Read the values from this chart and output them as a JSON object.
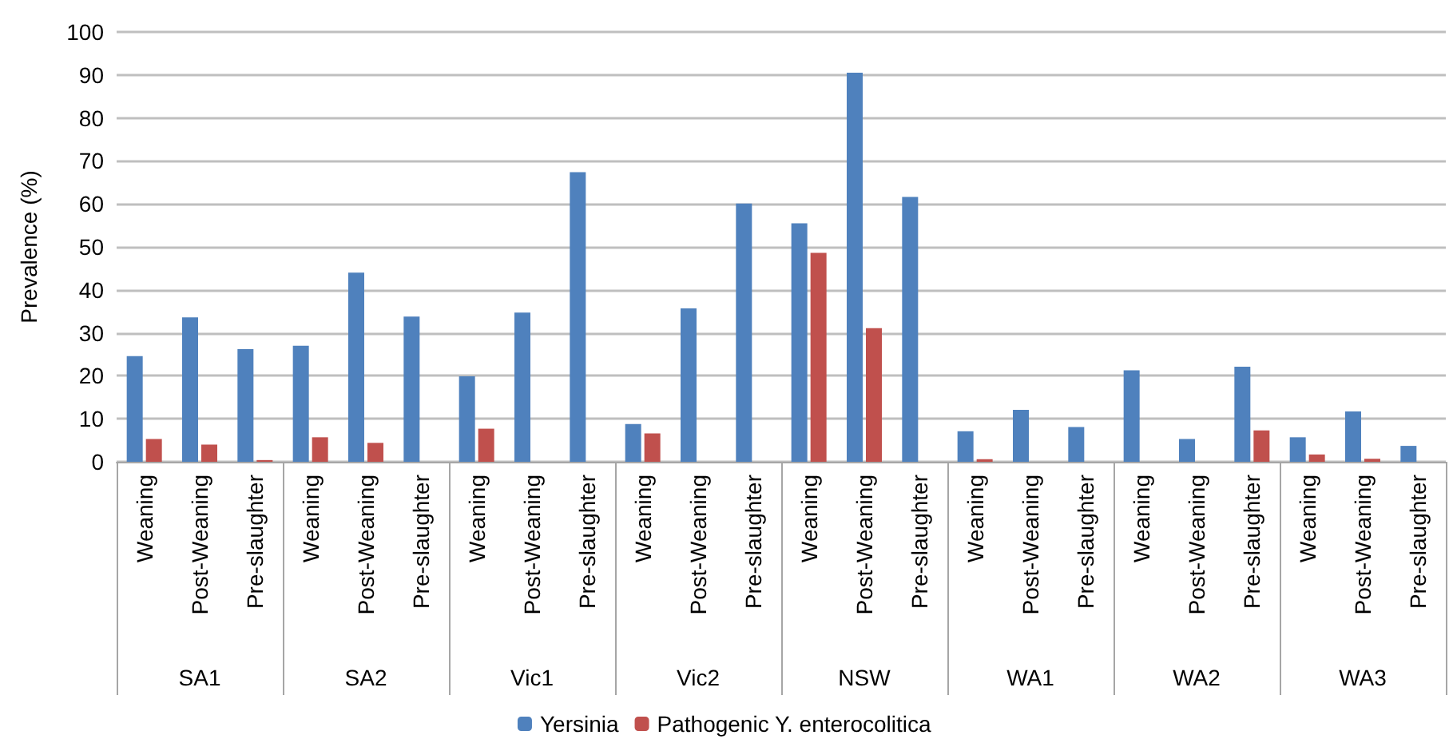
{
  "chart_data": {
    "type": "bar",
    "ylabel": "Prevalence (%)",
    "categories": [
      "Weaning",
      "Post-Weaning",
      "Pre-slaughter",
      "Weaning",
      "Post-Weaning",
      "Pre-slaughter",
      "Weaning",
      "Post-Weaning",
      "Pre-slaughter",
      "Weaning",
      "Post-Weaning",
      "Pre-slaughter",
      "Weaning",
      "Post-Weaning",
      "Pre-slaughter",
      "Weaning",
      "Post-Weaning",
      "Pre-slaughter",
      "Weaning",
      "Post-Weaning",
      "Pre-slaughter",
      "Weaning",
      "Post-Weaning",
      "Pre-slaughter"
    ],
    "annotations": [
      "SA1",
      "SA2",
      "Vic1",
      "Vic2",
      "NSW",
      "WA1",
      "WA2",
      "WA3"
    ],
    "series": [
      {
        "name": "Yersinia",
        "color": "#4f81bd",
        "values": [
          24.6,
          33.6,
          26.2,
          27.0,
          44.0,
          33.8,
          19.9,
          34.7,
          67.4,
          8.8,
          35.7,
          60.1,
          55.5,
          90.5,
          61.6,
          7.1,
          12.1,
          8.1,
          21.3,
          5.3,
          22.1,
          5.7,
          11.7,
          3.7
        ]
      },
      {
        "name": "Pathogenic Y. enterocolitica",
        "color": "#c0504d",
        "values": [
          5.3,
          4.0,
          0.4,
          5.7,
          4.4,
          0,
          7.7,
          0,
          0,
          6.6,
          0,
          0,
          48.6,
          31.1,
          0,
          0.6,
          0,
          0,
          0,
          0,
          7.3,
          1.7,
          0.7,
          0
        ]
      }
    ],
    "ylim": [
      0,
      100
    ],
    "yticks": [
      0,
      10,
      20,
      30,
      40,
      50,
      60,
      70,
      80,
      90,
      100
    ],
    "grid": "y",
    "legend": "bottom"
  }
}
